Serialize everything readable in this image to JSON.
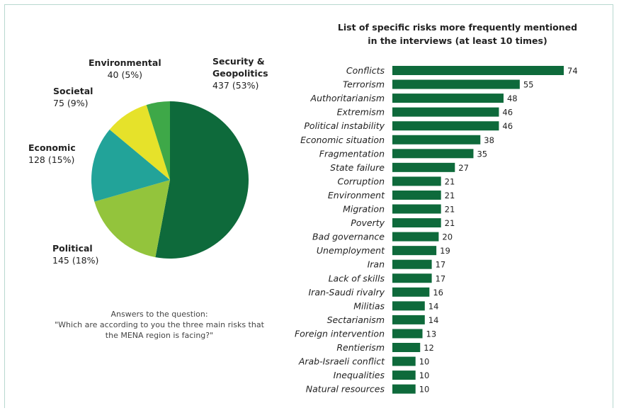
{
  "pie": {
    "question": "Answers to the question:\n\"Which are according to you the three main risks that the MENA region is facing?\"",
    "colors": {
      "security": "#0e6a3b",
      "political": "#93c43c",
      "economic": "#22a399",
      "societal": "#e6e22a",
      "environmental": "#3ea848"
    },
    "labels": {
      "security_name": "Security &\nGeopolitics",
      "security_value": "437 (53%)",
      "political_name": "Political",
      "political_value": "145 (18%)",
      "economic_name": "Economic",
      "economic_value": "128 (15%)",
      "societal_name": "Societal",
      "societal_value": "75 (9%)",
      "environmental_name": "Environmental",
      "environmental_value": "40 (5%)"
    }
  },
  "bars": {
    "title": "List of specific risks more frequently mentioned\nin the interviews (at least 10 times)",
    "bar_color": "#0e6a3b"
  },
  "chart_data": [
    {
      "type": "pie",
      "categories": [
        "Security & Geopolitics",
        "Political",
        "Economic",
        "Societal",
        "Environmental"
      ],
      "values": [
        437,
        145,
        128,
        75,
        40
      ],
      "percentages": [
        53,
        18,
        15,
        9,
        5
      ]
    },
    {
      "type": "bar",
      "orientation": "horizontal",
      "title": "List of specific risks more frequently mentioned in the interviews (at least 10 times)",
      "categories": [
        "Conflicts",
        "Terrorism",
        "Authoritarianism",
        "Extremism",
        "Political instability",
        "Economic situation",
        "Fragmentation",
        "State failure",
        "Corruption",
        "Environment",
        "Migration",
        "Poverty",
        "Bad governance",
        "Unemployment",
        "Iran",
        "Lack of skills",
        "Iran-Saudi rivalry",
        "Militias",
        "Sectarianism",
        "Foreign intervention",
        "Rentierism",
        "Arab-Israeli conflict",
        "Inequalities",
        "Natural resources"
      ],
      "values": [
        74,
        55,
        48,
        46,
        46,
        38,
        35,
        27,
        21,
        21,
        21,
        21,
        20,
        19,
        17,
        17,
        16,
        14,
        14,
        13,
        12,
        10,
        10,
        10
      ]
    }
  ]
}
